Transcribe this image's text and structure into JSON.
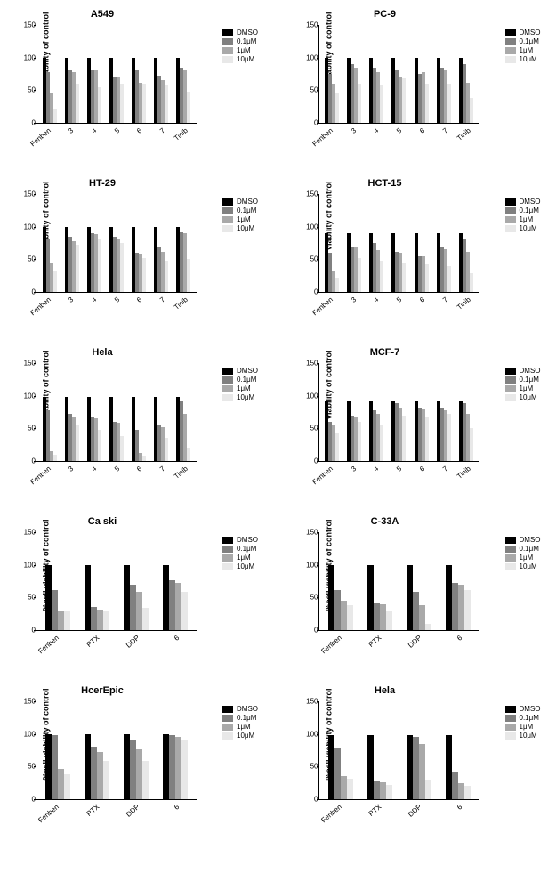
{
  "ylabel": "%cell viability of control",
  "ylim": [
    0,
    150
  ],
  "yticks": [
    0,
    50,
    100,
    150
  ],
  "colors": {
    "DMSO": "#000000",
    "c01": "#808080",
    "c1": "#a9a9a9",
    "c10": "#e8e8e8"
  },
  "legend_labels": [
    "DMSO",
    "0.1μM",
    "1μM",
    "10μM"
  ],
  "charts": [
    {
      "title": "A549",
      "categories": [
        "Fenben",
        "3",
        "4",
        "5",
        "6",
        "7",
        "Tinib"
      ],
      "series": [
        [
          100,
          78,
          46,
          22
        ],
        [
          100,
          80,
          78,
          60
        ],
        [
          100,
          80,
          80,
          55
        ],
        [
          100,
          70,
          70,
          60
        ],
        [
          100,
          80,
          62,
          60
        ],
        [
          100,
          72,
          65,
          58
        ],
        [
          100,
          85,
          80,
          48
        ]
      ]
    },
    {
      "title": "PC-9",
      "categories": [
        "Fenben",
        "3",
        "4",
        "5",
        "6",
        "7",
        "Tinib"
      ],
      "series": [
        [
          100,
          75,
          60,
          45
        ],
        [
          100,
          90,
          85,
          60
        ],
        [
          100,
          85,
          78,
          58
        ],
        [
          100,
          80,
          70,
          68
        ],
        [
          100,
          75,
          78,
          60
        ],
        [
          100,
          85,
          80,
          60
        ],
        [
          100,
          90,
          62,
          38
        ]
      ]
    },
    {
      "title": "HT-29",
      "categories": [
        "Fenben",
        "3",
        "4",
        "5",
        "6",
        "7",
        "Tinib"
      ],
      "series": [
        [
          100,
          80,
          45,
          32
        ],
        [
          100,
          85,
          78,
          72
        ],
        [
          100,
          90,
          88,
          80
        ],
        [
          100,
          85,
          80,
          75
        ],
        [
          100,
          60,
          58,
          52
        ],
        [
          100,
          68,
          62,
          48
        ],
        [
          100,
          92,
          90,
          50
        ]
      ]
    },
    {
      "title": "HCT-15",
      "categories": [
        "Fenben",
        "3",
        "4",
        "5",
        "6",
        "7",
        "Tinib"
      ],
      "series": [
        [
          90,
          60,
          32,
          22
        ],
        [
          90,
          70,
          68,
          52
        ],
        [
          90,
          75,
          64,
          48
        ],
        [
          90,
          62,
          60,
          45
        ],
        [
          90,
          55,
          55,
          42
        ],
        [
          90,
          68,
          65,
          40
        ],
        [
          90,
          82,
          62,
          28
        ]
      ]
    },
    {
      "title": "Hela",
      "categories": [
        "Fenben",
        "3",
        "4",
        "5",
        "6",
        "7",
        "Tinib"
      ],
      "series": [
        [
          98,
          78,
          15,
          10
        ],
        [
          98,
          72,
          68,
          56
        ],
        [
          98,
          68,
          65,
          48
        ],
        [
          98,
          60,
          58,
          38
        ],
        [
          98,
          48,
          12,
          8
        ],
        [
          98,
          55,
          52,
          35
        ],
        [
          98,
          92,
          72,
          20
        ]
      ]
    },
    {
      "title": "MCF-7",
      "categories": [
        "Fenben",
        "3",
        "4",
        "5",
        "6",
        "7",
        "Tinib"
      ],
      "series": [
        [
          92,
          60,
          56,
          42
        ],
        [
          92,
          70,
          68,
          60
        ],
        [
          92,
          78,
          72,
          55
        ],
        [
          92,
          88,
          82,
          70
        ],
        [
          92,
          82,
          80,
          68
        ],
        [
          92,
          82,
          78,
          72
        ],
        [
          92,
          88,
          72,
          50
        ]
      ]
    },
    {
      "title": "Ca ski",
      "categories": [
        "Fenben",
        "PTX",
        "DDP",
        "6"
      ],
      "series": [
        [
          100,
          62,
          30,
          28
        ],
        [
          100,
          35,
          32,
          30
        ],
        [
          100,
          70,
          58,
          34
        ],
        [
          100,
          76,
          72,
          58
        ]
      ]
    },
    {
      "title": "C-33A",
      "categories": [
        "Fenben",
        "PTX",
        "DDP",
        "6"
      ],
      "series": [
        [
          100,
          62,
          45,
          38
        ],
        [
          100,
          42,
          40,
          28
        ],
        [
          100,
          58,
          38,
          10
        ],
        [
          100,
          72,
          70,
          62
        ]
      ]
    },
    {
      "title": "HcerEpic",
      "categories": [
        "Fenben",
        "PTX",
        "DDP",
        "6"
      ],
      "series": [
        [
          100,
          98,
          46,
          38
        ],
        [
          100,
          80,
          72,
          58
        ],
        [
          100,
          92,
          76,
          58
        ],
        [
          100,
          98,
          96,
          92
        ]
      ]
    },
    {
      "title": "Hela",
      "categories": [
        "Fenben",
        "PTX",
        "DDP",
        "6"
      ],
      "series": [
        [
          98,
          78,
          35,
          32
        ],
        [
          98,
          28,
          26,
          22
        ],
        [
          98,
          95,
          85,
          30
        ],
        [
          98,
          42,
          25,
          20
        ]
      ]
    }
  ]
}
